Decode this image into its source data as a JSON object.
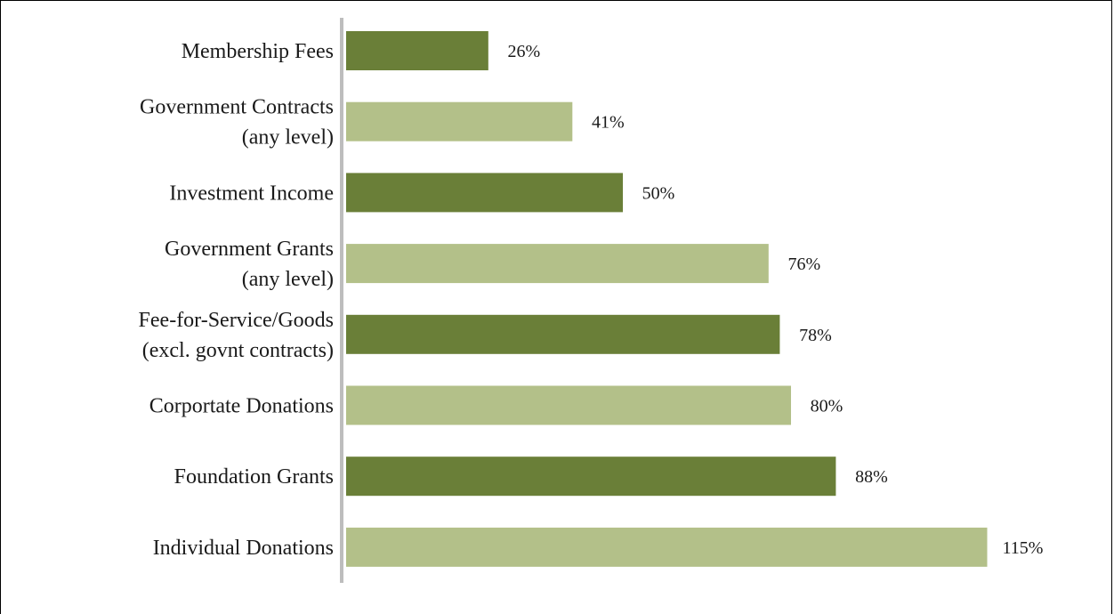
{
  "chart_data": {
    "type": "bar",
    "orientation": "horizontal",
    "categories": [
      [
        "Membership Fees"
      ],
      [
        "Government Contracts",
        "(any level)"
      ],
      [
        "Investment Income"
      ],
      [
        "Government Grants",
        "(any level)"
      ],
      [
        "Fee-for-Service/Goods",
        "(excl. govnt contracts)"
      ],
      [
        "Corportate Donations"
      ],
      [
        "Foundation Grants"
      ],
      [
        "Individual Donations"
      ]
    ],
    "values": [
      26,
      41,
      50,
      76,
      78,
      80,
      88,
      115
    ],
    "value_labels": [
      "26%",
      "41%",
      "50%",
      "76%",
      "78%",
      "80%",
      "88%",
      "115%"
    ],
    "title": "",
    "xlabel": "",
    "ylabel": "",
    "xlim": [
      0,
      125
    ],
    "grid": false,
    "legend": "none",
    "colors": {
      "dark": "#6a7f38",
      "light": "#b3c089",
      "axis": "#bdbdbd"
    }
  }
}
